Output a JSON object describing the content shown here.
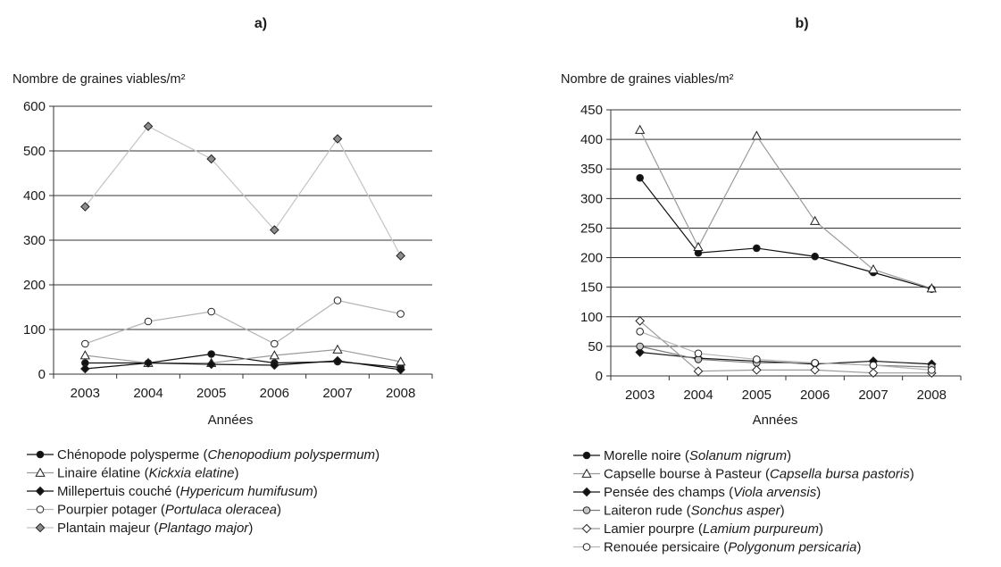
{
  "chart_data": [
    {
      "type": "line",
      "panel_label": "a)",
      "ylabel": "Nombre de graines viables/m²",
      "xlabel": "Années",
      "x": [
        "2003",
        "2004",
        "2005",
        "2006",
        "2007",
        "2008"
      ],
      "ylim": [
        0,
        600
      ],
      "yticks": [
        0,
        100,
        200,
        300,
        400,
        500,
        600
      ],
      "grid": "horizontal",
      "legend_position": "bottom",
      "series": [
        {
          "name": "Chénopode polysperme",
          "sci_name": "Chenopodium polyspermum",
          "marker": "circle",
          "marker_fill": "#111111",
          "line_color": "#111111",
          "values": [
            25,
            25,
            45,
            25,
            28,
            15
          ]
        },
        {
          "name": "Linaire élatine",
          "sci_name": "Kickxia elatine",
          "marker": "triangle",
          "marker_fill": "#ffffff",
          "line_color": "#9a9a9a",
          "values": [
            42,
            25,
            25,
            42,
            55,
            28
          ]
        },
        {
          "name": "Millepertuis couché",
          "sci_name": "Hypericum humifusum",
          "marker": "diamond",
          "marker_fill": "#111111",
          "line_color": "#111111",
          "values": [
            12,
            25,
            22,
            20,
            30,
            10
          ]
        },
        {
          "name": "Pourpier potager",
          "sci_name": "Portulaca oleracea",
          "marker": "circle",
          "marker_fill": "#ffffff",
          "line_color": "#b4b4b4",
          "values": [
            68,
            118,
            140,
            68,
            165,
            135
          ]
        },
        {
          "name": "Plantain majeur",
          "sci_name": "Plantago major",
          "marker": "diamond",
          "marker_fill": "#8c8c8c",
          "line_color": "#c4c4c4",
          "values": [
            375,
            555,
            482,
            323,
            527,
            265
          ]
        }
      ]
    },
    {
      "type": "line",
      "panel_label": "b)",
      "ylabel": "Nombre de graines viables/m²",
      "xlabel": "Années",
      "x": [
        "2003",
        "2004",
        "2005",
        "2006",
        "2007",
        "2008"
      ],
      "ylim": [
        0,
        450
      ],
      "yticks": [
        0,
        50,
        100,
        150,
        200,
        250,
        300,
        350,
        400,
        450
      ],
      "grid": "horizontal",
      "legend_position": "bottom",
      "series": [
        {
          "name": "Morelle noire",
          "sci_name": "Solanum nigrum",
          "marker": "circle",
          "marker_fill": "#111111",
          "line_color": "#111111",
          "values": [
            335,
            208,
            216,
            202,
            175,
            147
          ]
        },
        {
          "name": "Capselle bourse à Pasteur",
          "sci_name": "Capsella bursa pastoris",
          "marker": "triangle",
          "marker_fill": "#ffffff",
          "line_color": "#9a9a9a",
          "values": [
            416,
            218,
            406,
            262,
            180,
            148
          ]
        },
        {
          "name": "Pensée des champs",
          "sci_name": "Viola arvensis",
          "marker": "diamond",
          "marker_fill": "#111111",
          "line_color": "#111111",
          "values": [
            40,
            30,
            25,
            20,
            25,
            20
          ]
        },
        {
          "name": "Laiteron rude",
          "sci_name": "Sonchus asper",
          "marker": "circle",
          "marker_fill": "#c8c8c8",
          "line_color": "#7a7a7a",
          "values": [
            50,
            28,
            22,
            22,
            18,
            15
          ]
        },
        {
          "name": "Lamier pourpre",
          "sci_name": "Lamium purpureum",
          "marker": "diamond",
          "marker_fill": "#ffffff",
          "line_color": "#9a9a9a",
          "values": [
            93,
            8,
            10,
            10,
            5,
            5
          ]
        },
        {
          "name": "Renouée persicaire",
          "sci_name": "Polygonum persicaria",
          "marker": "circle",
          "marker_fill": "#ffffff",
          "line_color": "#b4b4b4",
          "values": [
            75,
            38,
            28,
            22,
            18,
            10
          ]
        }
      ]
    }
  ]
}
